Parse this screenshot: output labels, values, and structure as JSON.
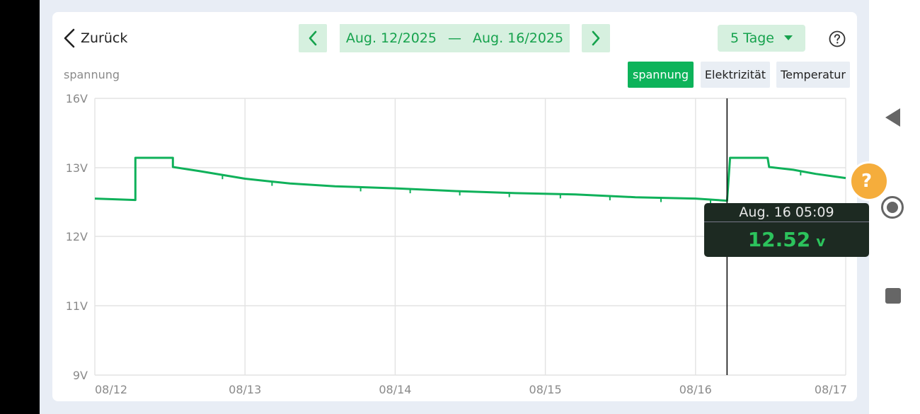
{
  "header": {
    "back_label": "Zurück",
    "date_start": "Aug. 12/2025",
    "date_separator": "—",
    "date_end": "Aug. 16/2025",
    "range_select": "5 Tage",
    "icons": {
      "back": "chevron-left-icon",
      "prev": "chevron-left-icon",
      "next": "chevron-right-icon",
      "dropdown": "caret-down-icon",
      "help": "question-circle-icon"
    }
  },
  "chart_title": "spannung",
  "metric_tabs": [
    {
      "label": "spannung",
      "active": true
    },
    {
      "label": "Elektrizität",
      "active": false
    },
    {
      "label": "Temperatur",
      "active": false
    }
  ],
  "tooltip": {
    "date": "Aug. 16 05:09",
    "value": "12.52",
    "unit": "v"
  },
  "colors": {
    "accent": "#0db35a",
    "accent_light": "#d6f0df",
    "line": "#0fb15a",
    "tooltip_bg": "#1d2a22"
  },
  "system_nav": [
    "back-triangle-icon",
    "home-circle-icon",
    "recent-square-icon"
  ],
  "chart_data": {
    "type": "line",
    "title": "spannung",
    "xlabel": "",
    "ylabel": "",
    "x_ticks": [
      "08/12",
      "08/13",
      "08/14",
      "08/15",
      "08/16",
      "08/17"
    ],
    "y_ticks": [
      "16V",
      "13V",
      "12V",
      "11V",
      "9V"
    ],
    "y_levels": [
      16,
      13,
      12,
      11,
      9
    ],
    "x_range_days": [
      0,
      5
    ],
    "grid": true,
    "cursor": {
      "x": 4.21,
      "y": 12.52,
      "label": "Aug. 16 05:09"
    },
    "series": [
      {
        "name": "spannung",
        "points": [
          [
            0,
            12.55
          ],
          [
            0.27,
            12.53
          ],
          [
            0.27,
            13.43
          ],
          [
            0.52,
            13.43
          ],
          [
            0.52,
            13.03
          ],
          [
            0.7,
            12.95
          ],
          [
            1.0,
            12.84
          ],
          [
            1.3,
            12.77
          ],
          [
            1.6,
            12.73
          ],
          [
            2.0,
            12.7
          ],
          [
            2.4,
            12.66
          ],
          [
            2.8,
            12.63
          ],
          [
            3.2,
            12.61
          ],
          [
            3.6,
            12.57
          ],
          [
            4.0,
            12.55
          ],
          [
            4.21,
            12.52
          ],
          [
            4.23,
            13.43
          ],
          [
            4.48,
            13.43
          ],
          [
            4.49,
            13.03
          ],
          [
            4.65,
            12.97
          ],
          [
            4.8,
            12.91
          ],
          [
            5.0,
            12.85
          ]
        ],
        "dips": [
          0.85,
          1.18,
          1.77,
          2.1,
          2.43,
          2.76,
          3.1,
          3.43,
          3.77,
          4.1,
          4.7
        ]
      }
    ]
  }
}
